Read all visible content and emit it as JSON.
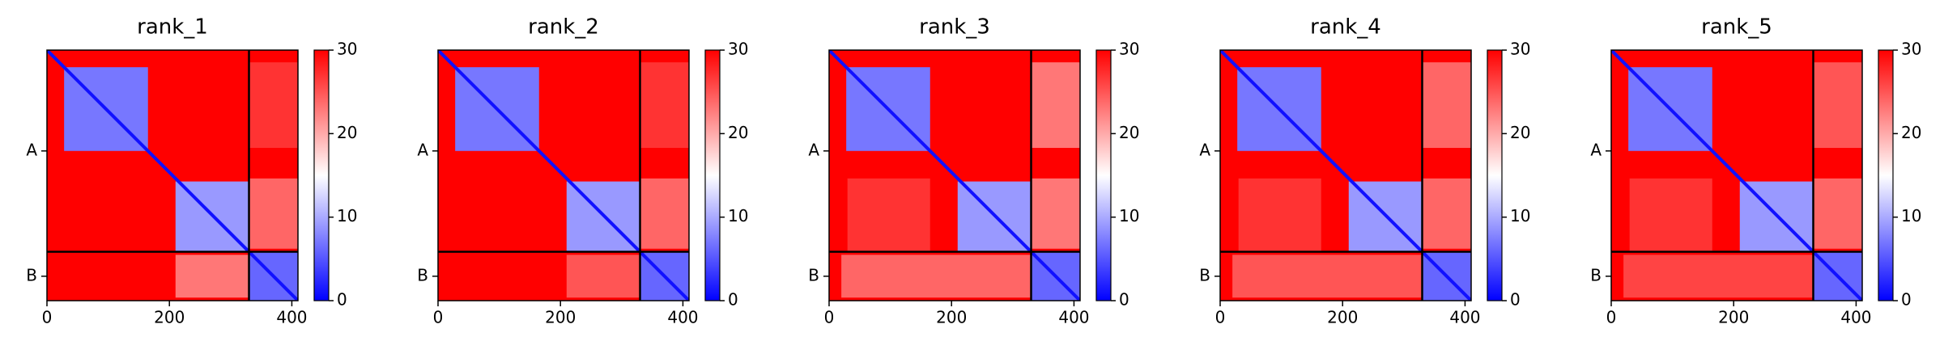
{
  "chart_data": [
    {
      "type": "heatmap",
      "title": "rank_1",
      "xlim": [
        0,
        410
      ],
      "ylim": [
        410,
        0
      ],
      "xticks": [
        0,
        200,
        400
      ],
      "yticks": [
        {
          "value": 165,
          "label": "A"
        },
        {
          "value": 370,
          "label": "B"
        }
      ],
      "chain_breaks": [
        330
      ],
      "colormap": [
        "#0000ff",
        "#ffffff",
        "#ff0000"
      ],
      "clim": [
        0,
        30
      ],
      "cticks": [
        0,
        10,
        20,
        30
      ],
      "diagonal_value": 1,
      "blocks": [
        {
          "x": [
            0,
            410
          ],
          "y": [
            0,
            410
          ],
          "value": 30
        },
        {
          "x": [
            28,
            165
          ],
          "y": [
            28,
            165
          ],
          "value": 7
        },
        {
          "x": [
            210,
            330
          ],
          "y": [
            215,
            330
          ],
          "value": 9
        },
        {
          "x": [
            330,
            410
          ],
          "y": [
            330,
            410
          ],
          "value": 6
        },
        {
          "x": [
            210,
            330
          ],
          "y": [
            335,
            405
          ],
          "value": 23
        },
        {
          "x": [
            330,
            410
          ],
          "y": [
            210,
            325
          ],
          "value": 24
        },
        {
          "x": [
            330,
            410
          ],
          "y": [
            20,
            160
          ],
          "value": 27
        }
      ]
    },
    {
      "type": "heatmap",
      "title": "rank_2",
      "xlim": [
        0,
        410
      ],
      "ylim": [
        410,
        0
      ],
      "xticks": [
        0,
        200,
        400
      ],
      "yticks": [
        {
          "value": 165,
          "label": "A"
        },
        {
          "value": 370,
          "label": "B"
        }
      ],
      "chain_breaks": [
        330
      ],
      "colormap": [
        "#0000ff",
        "#ffffff",
        "#ff0000"
      ],
      "clim": [
        0,
        30
      ],
      "cticks": [
        0,
        10,
        20,
        30
      ],
      "diagonal_value": 1,
      "blocks": [
        {
          "x": [
            0,
            410
          ],
          "y": [
            0,
            410
          ],
          "value": 30
        },
        {
          "x": [
            28,
            165
          ],
          "y": [
            28,
            165
          ],
          "value": 7
        },
        {
          "x": [
            210,
            330
          ],
          "y": [
            215,
            330
          ],
          "value": 9
        },
        {
          "x": [
            330,
            410
          ],
          "y": [
            330,
            410
          ],
          "value": 6
        },
        {
          "x": [
            210,
            330
          ],
          "y": [
            335,
            405
          ],
          "value": 25
        },
        {
          "x": [
            330,
            410
          ],
          "y": [
            210,
            325
          ],
          "value": 24
        },
        {
          "x": [
            330,
            410
          ],
          "y": [
            20,
            160
          ],
          "value": 27
        }
      ]
    },
    {
      "type": "heatmap",
      "title": "rank_3",
      "xlim": [
        0,
        410
      ],
      "ylim": [
        410,
        0
      ],
      "xticks": [
        0,
        200,
        400
      ],
      "yticks": [
        {
          "value": 165,
          "label": "A"
        },
        {
          "value": 370,
          "label": "B"
        }
      ],
      "chain_breaks": [
        330
      ],
      "colormap": [
        "#0000ff",
        "#ffffff",
        "#ff0000"
      ],
      "clim": [
        0,
        30
      ],
      "cticks": [
        0,
        10,
        20,
        30
      ],
      "diagonal_value": 1,
      "blocks": [
        {
          "x": [
            0,
            410
          ],
          "y": [
            0,
            410
          ],
          "value": 30
        },
        {
          "x": [
            30,
            165
          ],
          "y": [
            210,
            330
          ],
          "value": 27
        },
        {
          "x": [
            28,
            165
          ],
          "y": [
            28,
            165
          ],
          "value": 7
        },
        {
          "x": [
            210,
            330
          ],
          "y": [
            215,
            330
          ],
          "value": 9
        },
        {
          "x": [
            330,
            410
          ],
          "y": [
            330,
            410
          ],
          "value": 6
        },
        {
          "x": [
            20,
            330
          ],
          "y": [
            335,
            405
          ],
          "value": 24
        },
        {
          "x": [
            330,
            410
          ],
          "y": [
            210,
            325
          ],
          "value": 23
        },
        {
          "x": [
            330,
            410
          ],
          "y": [
            20,
            160
          ],
          "value": 23
        }
      ]
    },
    {
      "type": "heatmap",
      "title": "rank_4",
      "xlim": [
        0,
        410
      ],
      "ylim": [
        410,
        0
      ],
      "xticks": [
        0,
        200,
        400
      ],
      "yticks": [
        {
          "value": 165,
          "label": "A"
        },
        {
          "value": 370,
          "label": "B"
        }
      ],
      "chain_breaks": [
        330
      ],
      "colormap": [
        "#0000ff",
        "#ffffff",
        "#ff0000"
      ],
      "clim": [
        0,
        30
      ],
      "cticks": [
        0,
        10,
        20,
        30
      ],
      "diagonal_value": 1,
      "blocks": [
        {
          "x": [
            0,
            410
          ],
          "y": [
            0,
            410
          ],
          "value": 30
        },
        {
          "x": [
            30,
            165
          ],
          "y": [
            210,
            330
          ],
          "value": 27
        },
        {
          "x": [
            28,
            165
          ],
          "y": [
            28,
            165
          ],
          "value": 7
        },
        {
          "x": [
            210,
            330
          ],
          "y": [
            215,
            330
          ],
          "value": 9
        },
        {
          "x": [
            330,
            410
          ],
          "y": [
            330,
            410
          ],
          "value": 6
        },
        {
          "x": [
            20,
            330
          ],
          "y": [
            335,
            405
          ],
          "value": 25
        },
        {
          "x": [
            330,
            410
          ],
          "y": [
            210,
            325
          ],
          "value": 24
        },
        {
          "x": [
            330,
            410
          ],
          "y": [
            20,
            160
          ],
          "value": 24
        }
      ]
    },
    {
      "type": "heatmap",
      "title": "rank_5",
      "xlim": [
        0,
        410
      ],
      "ylim": [
        410,
        0
      ],
      "xticks": [
        0,
        200,
        400
      ],
      "yticks": [
        {
          "value": 165,
          "label": "A"
        },
        {
          "value": 370,
          "label": "B"
        }
      ],
      "chain_breaks": [
        330
      ],
      "colormap": [
        "#0000ff",
        "#ffffff",
        "#ff0000"
      ],
      "clim": [
        0,
        30
      ],
      "cticks": [
        0,
        10,
        20,
        30
      ],
      "diagonal_value": 1,
      "blocks": [
        {
          "x": [
            0,
            410
          ],
          "y": [
            0,
            410
          ],
          "value": 30
        },
        {
          "x": [
            30,
            165
          ],
          "y": [
            210,
            330
          ],
          "value": 27
        },
        {
          "x": [
            28,
            165
          ],
          "y": [
            28,
            165
          ],
          "value": 7
        },
        {
          "x": [
            210,
            330
          ],
          "y": [
            215,
            330
          ],
          "value": 9
        },
        {
          "x": [
            330,
            410
          ],
          "y": [
            330,
            410
          ],
          "value": 6
        },
        {
          "x": [
            20,
            330
          ],
          "y": [
            335,
            405
          ],
          "value": 26
        },
        {
          "x": [
            330,
            410
          ],
          "y": [
            210,
            325
          ],
          "value": 24
        },
        {
          "x": [
            330,
            410
          ],
          "y": [
            20,
            160
          ],
          "value": 25
        }
      ]
    }
  ]
}
